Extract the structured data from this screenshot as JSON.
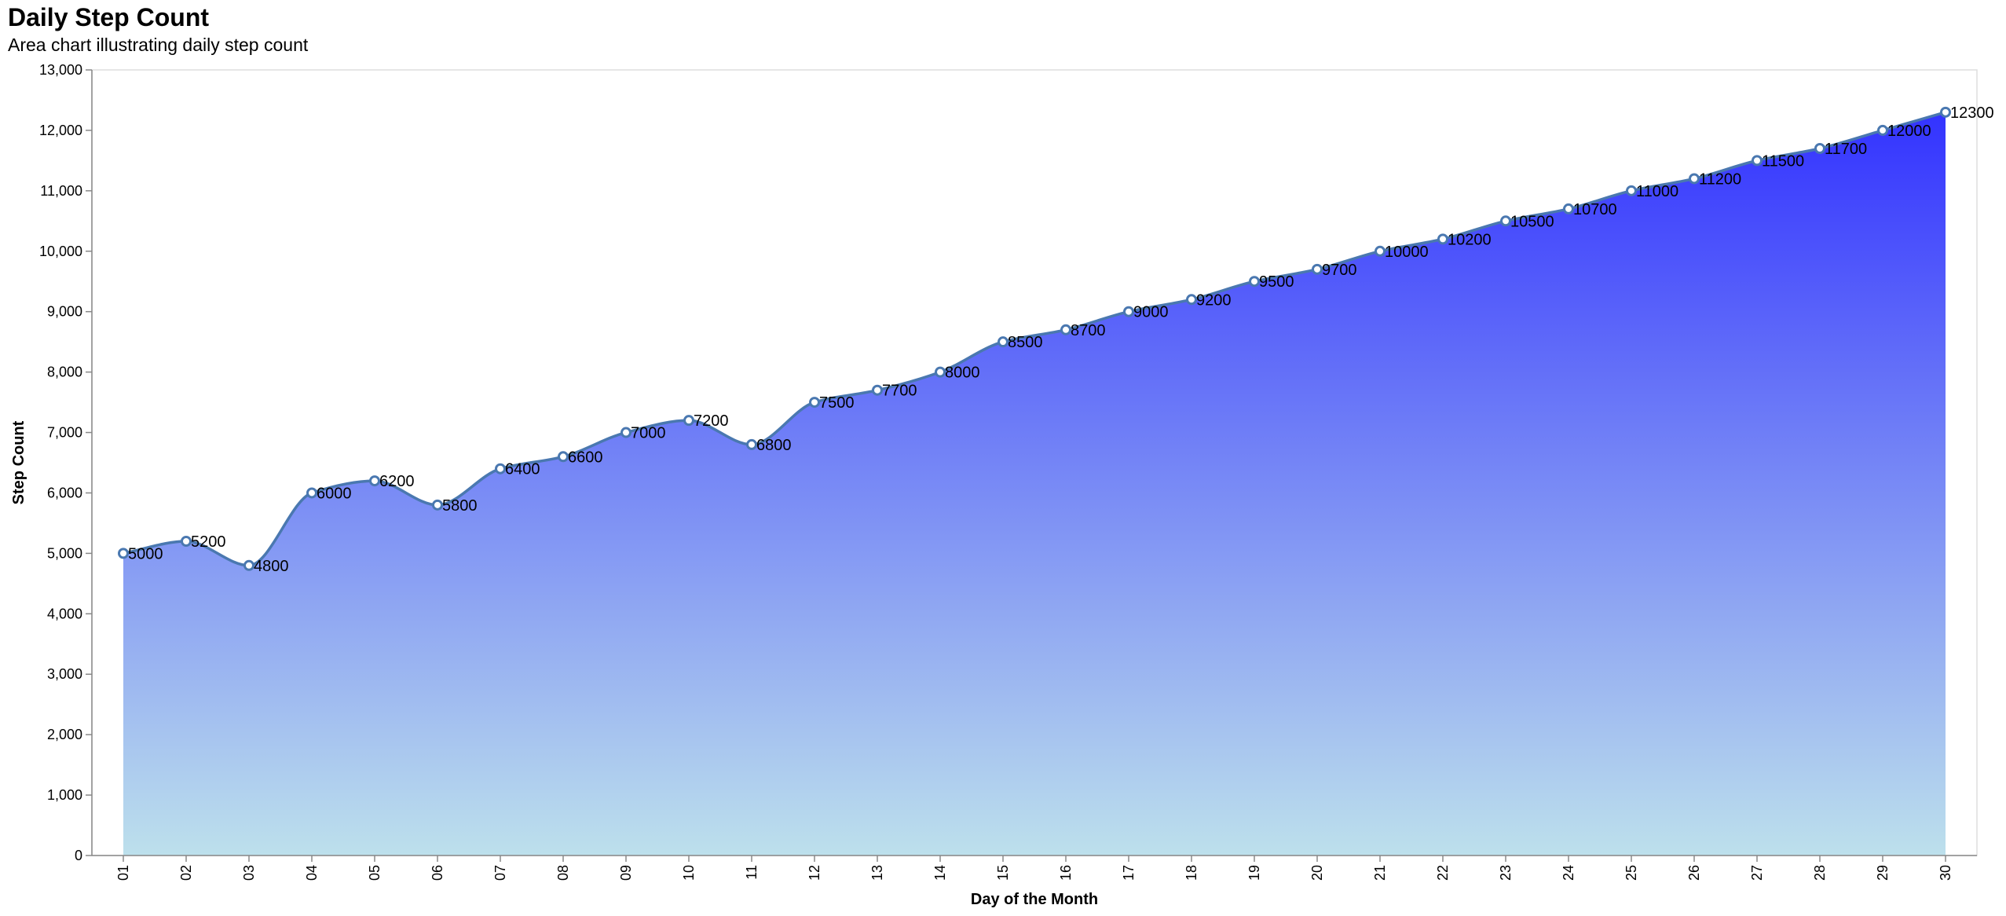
{
  "chart_data": {
    "type": "area",
    "title": "Daily Step Count",
    "subtitle": "Area chart illustrating daily step count",
    "xlabel": "Day of the Month",
    "ylabel": "Step Count",
    "ylim": [
      0,
      13000
    ],
    "yticks": [
      "0",
      "1,000",
      "2,000",
      "3,000",
      "4,000",
      "5,000",
      "6,000",
      "7,000",
      "8,000",
      "9,000",
      "10,000",
      "11,000",
      "12,000",
      "13,000"
    ],
    "categories": [
      "01",
      "02",
      "03",
      "04",
      "05",
      "06",
      "07",
      "08",
      "09",
      "10",
      "11",
      "12",
      "13",
      "14",
      "15",
      "16",
      "17",
      "18",
      "19",
      "20",
      "21",
      "22",
      "23",
      "24",
      "25",
      "26",
      "27",
      "28",
      "29",
      "30"
    ],
    "values": [
      5000,
      5200,
      4800,
      6000,
      6200,
      5800,
      6400,
      6600,
      7000,
      7200,
      6800,
      7500,
      7700,
      8000,
      8500,
      8700,
      9000,
      9200,
      9500,
      9700,
      10000,
      10200,
      10500,
      10700,
      11000,
      11200,
      11500,
      11700,
      12000,
      12300
    ],
    "grid": false,
    "colors": {
      "gradient_top": "#3333ff",
      "gradient_bottom": "#bde0ec",
      "line": "#4a78b0",
      "point_fill": "#ffffff",
      "point_stroke": "#4a78b0"
    }
  }
}
